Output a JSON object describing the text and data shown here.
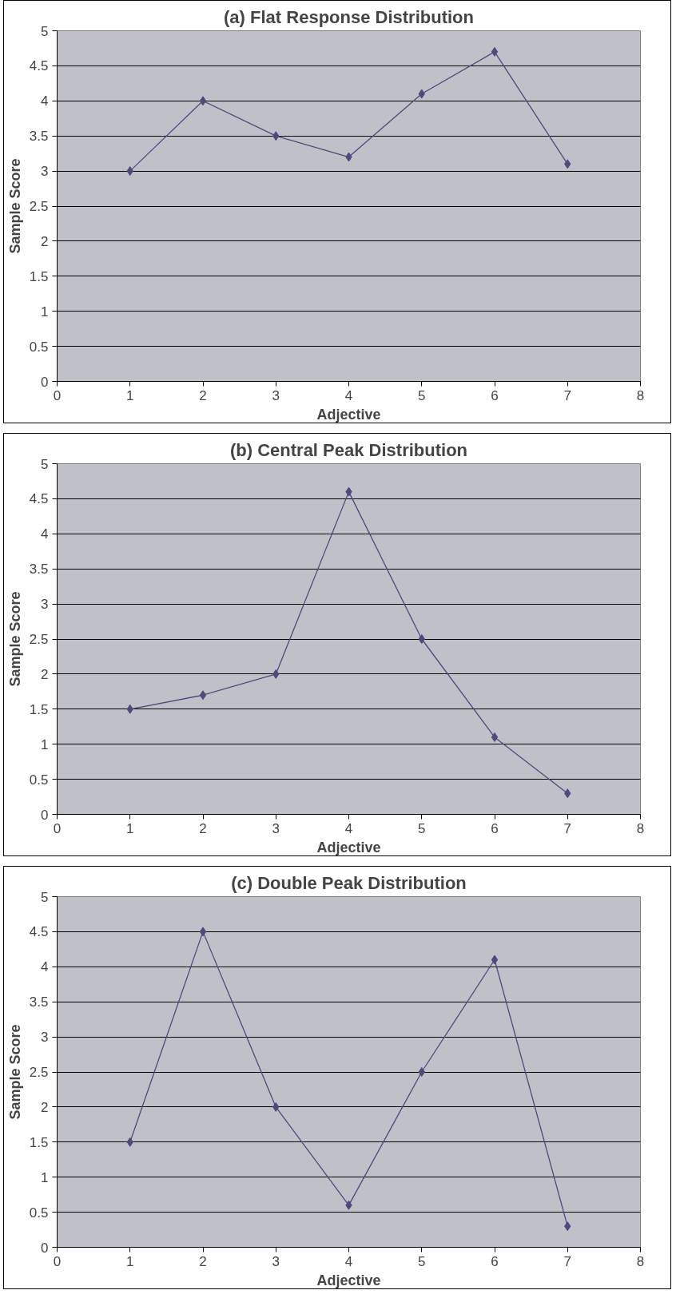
{
  "chart_data": [
    {
      "type": "line",
      "title": "(a) Flat Response Distribution",
      "xlabel": "Adjective",
      "ylabel": "Sample Score",
      "x": [
        1,
        2,
        3,
        4,
        5,
        6,
        7
      ],
      "series": [
        {
          "color": "#4b4b7d",
          "values": [
            3,
            4,
            3.5,
            3.2,
            4.1,
            4.7,
            3.1
          ]
        }
      ],
      "xlim": [
        0,
        8
      ],
      "xticks": [
        0,
        1,
        2,
        3,
        4,
        5,
        6,
        7,
        8
      ],
      "ylim": [
        0,
        5
      ],
      "yticks": [
        0,
        0.5,
        1,
        1.5,
        2,
        2.5,
        3,
        3.5,
        4,
        4.5,
        5
      ],
      "grid": "y",
      "marker": "diamond"
    },
    {
      "type": "line",
      "title": "(b) Central Peak Distribution",
      "xlabel": "Adjective",
      "ylabel": "Sample Score",
      "x": [
        1,
        2,
        3,
        4,
        5,
        6,
        7
      ],
      "series": [
        {
          "color": "#4b4b7d",
          "values": [
            1.5,
            1.7,
            2,
            4.6,
            2.5,
            1.1,
            0.3
          ]
        }
      ],
      "xlim": [
        0,
        8
      ],
      "xticks": [
        0,
        1,
        2,
        3,
        4,
        5,
        6,
        7,
        8
      ],
      "ylim": [
        0,
        5
      ],
      "yticks": [
        0,
        0.5,
        1,
        1.5,
        2,
        2.5,
        3,
        3.5,
        4,
        4.5,
        5
      ],
      "grid": "y",
      "marker": "diamond"
    },
    {
      "type": "line",
      "title": "(c) Double Peak Distribution",
      "xlabel": "Adjective",
      "ylabel": "Sample Score",
      "x": [
        1,
        2,
        3,
        4,
        5,
        6,
        7
      ],
      "series": [
        {
          "color": "#4b4b7d",
          "values": [
            1.5,
            4.5,
            2,
            0.6,
            2.5,
            4.1,
            0.3
          ]
        }
      ],
      "xlim": [
        0,
        8
      ],
      "xticks": [
        0,
        1,
        2,
        3,
        4,
        5,
        6,
        7,
        8
      ],
      "ylim": [
        0,
        5
      ],
      "yticks": [
        0,
        0.5,
        1,
        1.5,
        2,
        2.5,
        3,
        3.5,
        4,
        4.5,
        5
      ],
      "grid": "y",
      "marker": "diamond"
    }
  ]
}
